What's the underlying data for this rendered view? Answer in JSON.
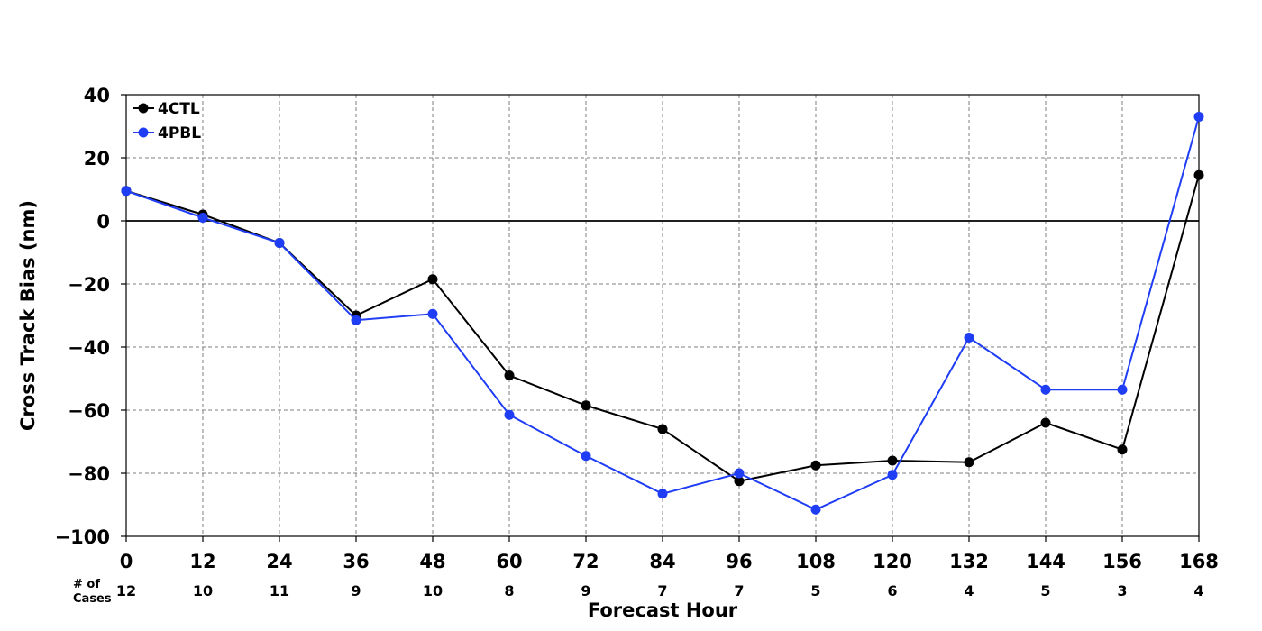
{
  "chart_data": {
    "type": "line",
    "title": "",
    "xlabel": "Forecast Hour",
    "ylabel": "Cross Track Bias (nm)",
    "x": [
      0,
      12,
      24,
      36,
      48,
      60,
      72,
      84,
      96,
      108,
      120,
      132,
      144,
      156,
      168
    ],
    "xlim": [
      0,
      168
    ],
    "ylim": [
      -100,
      40
    ],
    "y_ticks": [
      40,
      20,
      0,
      -20,
      -40,
      -60,
      -80,
      -100
    ],
    "y_tick_labels": [
      "40",
      "20",
      "0",
      "−20",
      "−40",
      "−60",
      "−80",
      "−100"
    ],
    "x_tick_labels": [
      "0",
      "12",
      "24",
      "36",
      "48",
      "60",
      "72",
      "84",
      "96",
      "108",
      "120",
      "132",
      "144",
      "156",
      "168"
    ],
    "grid": true,
    "zero_line": true,
    "legend_position": "top-left",
    "cases_title_line1": "# of",
    "cases_title_line2": "Cases",
    "cases": [
      "12",
      "10",
      "11",
      "9",
      "10",
      "8",
      "9",
      "7",
      "7",
      "5",
      "6",
      "4",
      "5",
      "3",
      "4"
    ],
    "series": [
      {
        "name": "4CTL",
        "color": "#000000",
        "values": [
          9.5,
          2,
          -7,
          -30,
          -18.5,
          -49,
          -58.5,
          -66,
          -82.5,
          -77.5,
          -76,
          -76.5,
          -64,
          -72.5,
          14.5
        ]
      },
      {
        "name": "4PBL",
        "color": "#1f3df5",
        "values": [
          9.5,
          1,
          -7,
          -31.5,
          -29.5,
          -61.5,
          -74.5,
          -86.5,
          -80,
          -91.5,
          -80.5,
          -37,
          -53.5,
          -53.5,
          33
        ]
      }
    ]
  }
}
